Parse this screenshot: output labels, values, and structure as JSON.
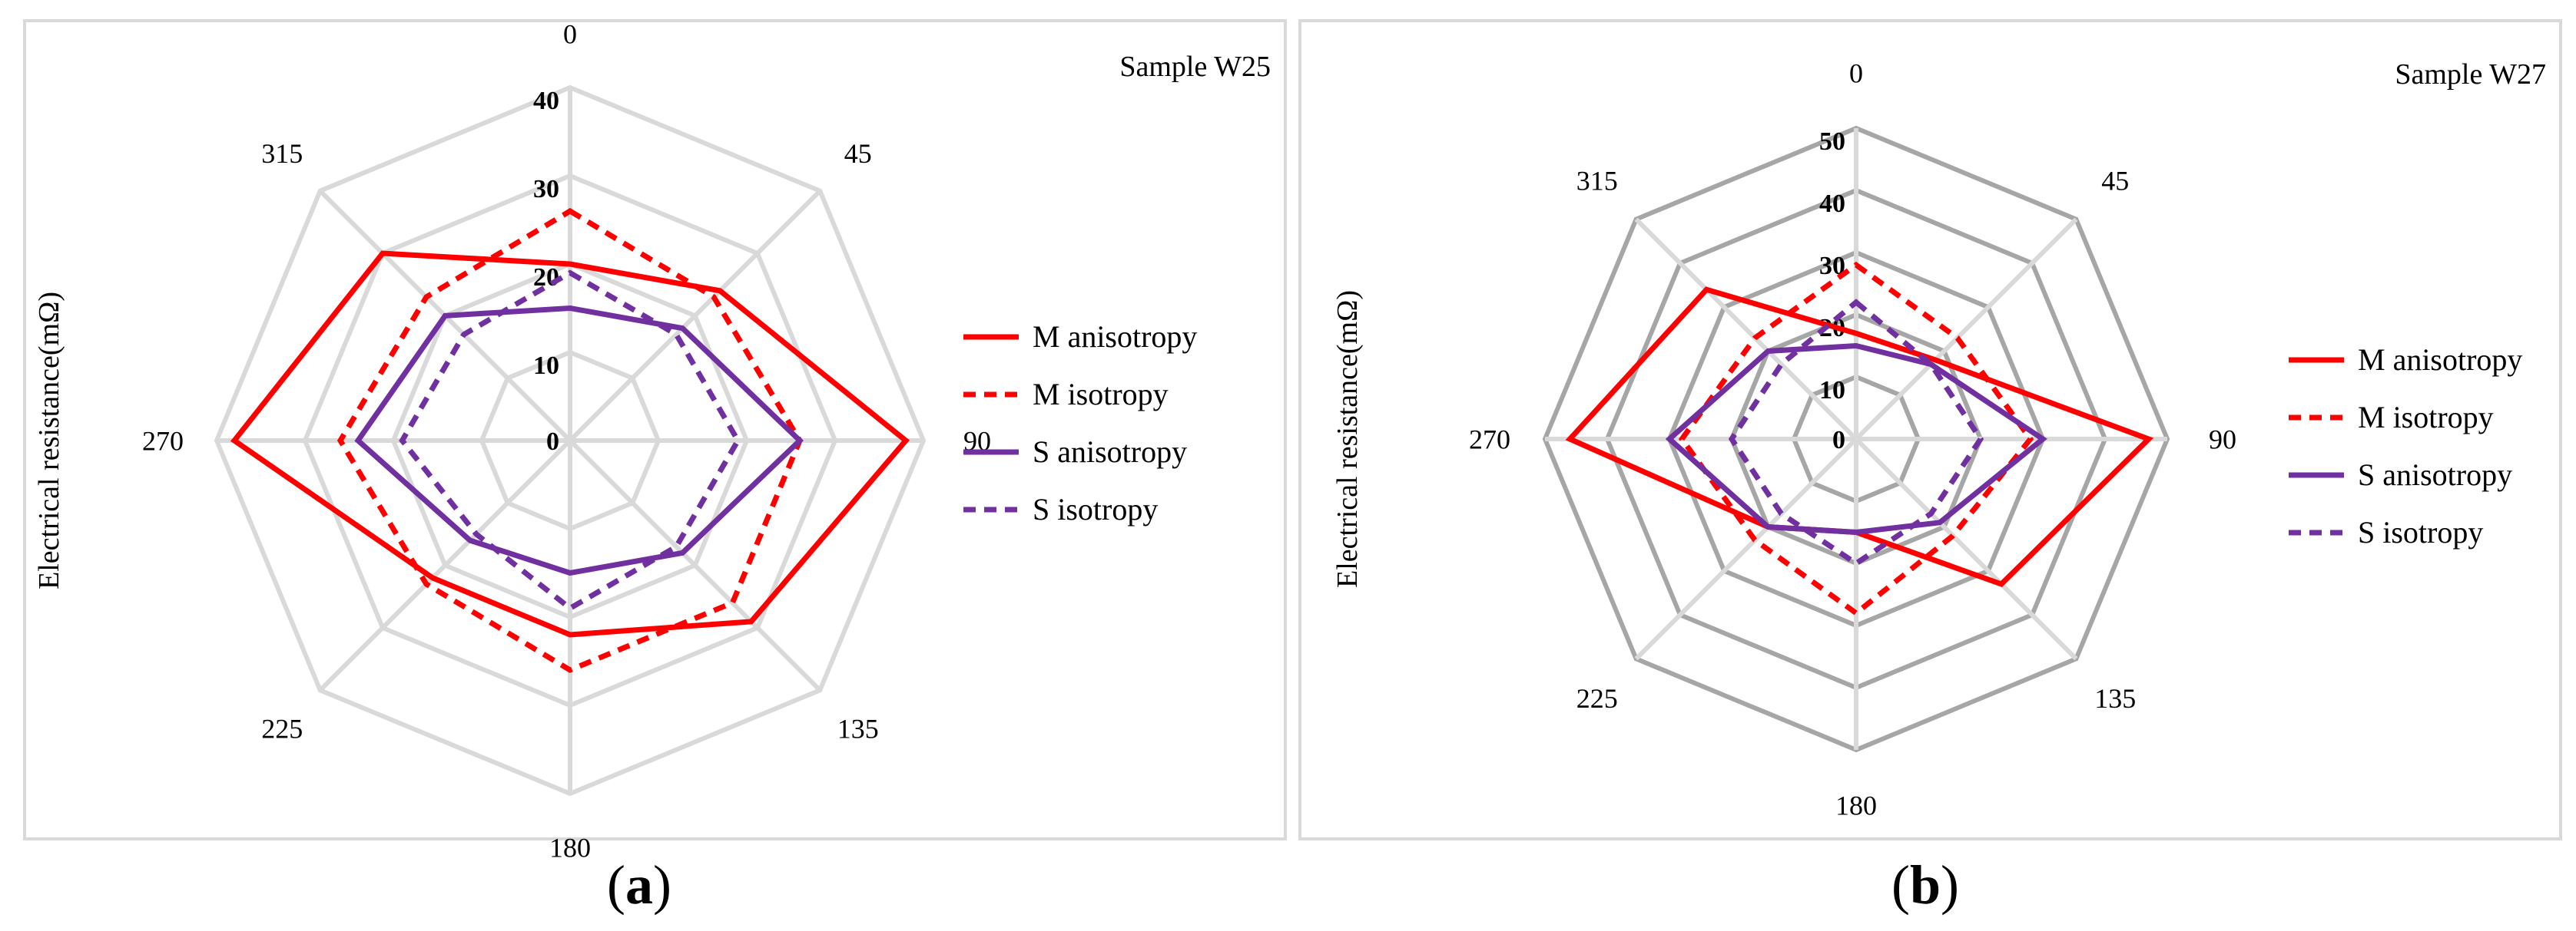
{
  "chart_data": [
    {
      "type": "radar",
      "panel_label": "a",
      "title": "Sample W25",
      "ylabel": "Electrical resistance(mΩ)",
      "angles": [
        "0",
        "45",
        "90",
        "135",
        "180",
        "225",
        "270",
        "315"
      ],
      "radial_ticks": [
        "0",
        "10",
        "20",
        "30",
        "40"
      ],
      "rmax": 40,
      "gridline_color": "#d9d9d9",
      "series": [
        {
          "name": "M anisotropy",
          "color": "#ff0000",
          "dash": "solid",
          "values": [
            20,
            24,
            38,
            29,
            22,
            22,
            38,
            30
          ]
        },
        {
          "name": "M isotropy",
          "color": "#ff0000",
          "dash": "dashed",
          "values": [
            26,
            23,
            26,
            26,
            26,
            23,
            26,
            23
          ]
        },
        {
          "name": "S anisotropy",
          "color": "#7030a0",
          "dash": "solid",
          "values": [
            15,
            18,
            26,
            18,
            15,
            16,
            24,
            20
          ]
        },
        {
          "name": "S isotropy",
          "color": "#7030a0",
          "dash": "dashed",
          "values": [
            19,
            17,
            19,
            17,
            19,
            15,
            19,
            17
          ]
        }
      ]
    },
    {
      "type": "radar",
      "panel_label": "b",
      "title": "Sample W27",
      "ylabel": "Electrical resistance(mΩ)",
      "angles": [
        "0",
        "45",
        "90",
        "135",
        "180",
        "225",
        "270",
        "315"
      ],
      "radial_ticks": [
        "0",
        "10",
        "20",
        "30",
        "40",
        "50"
      ],
      "rmax": 50,
      "gridline_color": "#a6a6a6",
      "series": [
        {
          "name": "M anisotropy",
          "color": "#ff0000",
          "dash": "solid",
          "values": [
            17,
            18,
            47,
            33,
            15,
            20,
            46,
            34
          ]
        },
        {
          "name": "M isotropy",
          "color": "#ff0000",
          "dash": "dashed",
          "values": [
            28,
            23,
            28,
            22,
            28,
            23,
            28,
            23
          ]
        },
        {
          "name": "S anisotropy",
          "color": "#7030a0",
          "dash": "solid",
          "values": [
            15,
            17,
            30,
            19,
            15,
            20,
            30,
            20
          ]
        },
        {
          "name": "S isotropy",
          "color": "#7030a0",
          "dash": "dashed",
          "values": [
            22,
            17,
            20,
            17,
            20,
            17,
            20,
            17
          ]
        }
      ]
    }
  ]
}
